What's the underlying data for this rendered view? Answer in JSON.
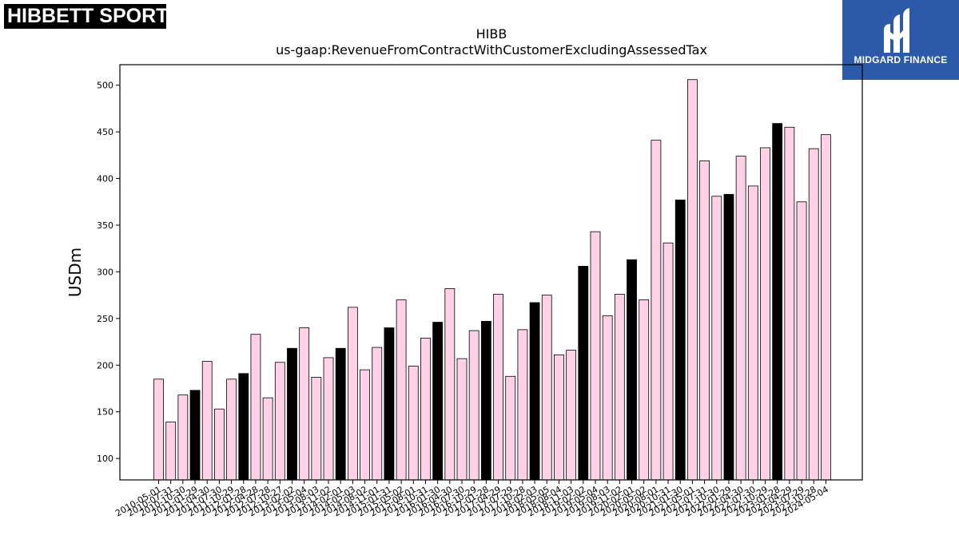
{
  "brand": {
    "left_logo": "HIBBETT SPORTS",
    "left_logo_mark": "®",
    "right_logo": "MIDGARD FINANCE"
  },
  "colors": {
    "bar_fill_default": "#ffd0e6",
    "bar_fill_highlight": "#000000",
    "bar_edge": "#000000",
    "right_logo_bg": "#2d5aa8"
  },
  "chart_data": {
    "type": "bar",
    "title": "HIBB",
    "subtitle": "us-gaap:RevenueFromContractWithCustomerExcludingAssessedTax",
    "xlabel": "",
    "ylabel": "USDm",
    "ylim": [
      77,
      522
    ],
    "yticks": [
      100,
      150,
      200,
      250,
      300,
      350,
      400,
      450,
      500
    ],
    "grid": false,
    "legend": "none",
    "categories": [
      "2010-05-01",
      "2010-07-31",
      "2010-10-30",
      "2011-01-29",
      "2011-04-30",
      "2011-07-30",
      "2011-10-29",
      "2012-01-28",
      "2012-04-28",
      "2012-07-28",
      "2012-10-27",
      "2013-02-02",
      "2013-05-04",
      "2013-08-03",
      "2013-11-02",
      "2014-02-01",
      "2014-05-03",
      "2014-08-02",
      "2014-11-01",
      "2015-01-31",
      "2015-05-02",
      "2015-08-01",
      "2015-10-31",
      "2016-01-30",
      "2016-04-30",
      "2016-07-30",
      "2016-10-29",
      "2017-01-28",
      "2017-04-29",
      "2017-07-29",
      "2017-10-28",
      "2018-02-03",
      "2018-05-05",
      "2018-08-04",
      "2018-11-03",
      "2019-02-02",
      "2019-05-04",
      "2019-08-03",
      "2019-11-02",
      "2020-02-01",
      "2020-05-02",
      "2020-08-01",
      "2020-10-31",
      "2021-01-30",
      "2021-05-01",
      "2021-07-31",
      "2021-10-30",
      "2022-01-29",
      "2022-04-30",
      "2022-07-30",
      "2022-10-29",
      "2023-01-28",
      "2023-04-29",
      "2023-07-29",
      "2023-10-28",
      "2024-05-04"
    ],
    "values": [
      185,
      139,
      168,
      173,
      204,
      153,
      185,
      191,
      233,
      165,
      203,
      218,
      240,
      187,
      208,
      218,
      262,
      195,
      219,
      240,
      270,
      199,
      229,
      246,
      282,
      207,
      237,
      247,
      276,
      188,
      238,
      267,
      275,
      211,
      216,
      306,
      343,
      253,
      276,
      313,
      270,
      441,
      331,
      377,
      506,
      419,
      381,
      383,
      424,
      392,
      433,
      459,
      455,
      375,
      432,
      447
    ],
    "highlighted": [
      false,
      false,
      false,
      true,
      false,
      false,
      false,
      true,
      false,
      false,
      false,
      true,
      false,
      false,
      false,
      true,
      false,
      false,
      false,
      true,
      false,
      false,
      false,
      true,
      false,
      false,
      false,
      true,
      false,
      false,
      false,
      true,
      false,
      false,
      false,
      true,
      false,
      false,
      false,
      true,
      false,
      false,
      false,
      true,
      false,
      false,
      false,
      true,
      false,
      false,
      false,
      true,
      false,
      false,
      false,
      false
    ]
  }
}
